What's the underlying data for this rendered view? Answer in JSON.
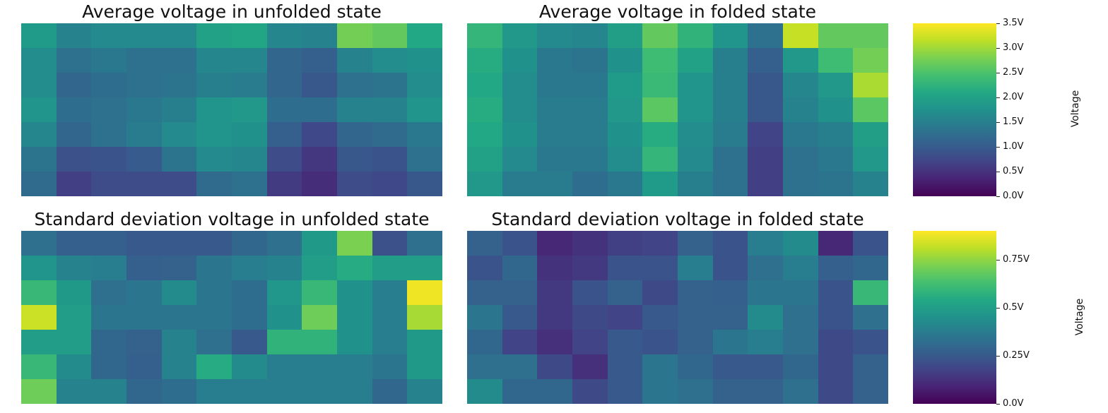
{
  "chart_data": [
    {
      "type": "heatmap",
      "title": "Average voltage in unfolded state",
      "scale": "mean",
      "values": [
        [
          1.9,
          1.55,
          1.65,
          1.65,
          1.65,
          2.0,
          2.05,
          1.6,
          1.55,
          2.75,
          2.65,
          2.1
        ],
        [
          1.7,
          1.3,
          1.4,
          1.3,
          1.3,
          1.6,
          1.6,
          1.15,
          1.05,
          1.55,
          1.7,
          1.75
        ],
        [
          1.7,
          1.15,
          1.25,
          1.3,
          1.35,
          1.5,
          1.45,
          1.15,
          0.95,
          1.3,
          1.35,
          1.7
        ],
        [
          1.8,
          1.25,
          1.3,
          1.4,
          1.5,
          1.8,
          1.85,
          1.25,
          1.25,
          1.55,
          1.55,
          1.8
        ],
        [
          1.6,
          1.15,
          1.3,
          1.45,
          1.65,
          1.8,
          1.75,
          1.05,
          0.75,
          1.15,
          1.2,
          1.4
        ],
        [
          1.35,
          0.85,
          0.9,
          1.0,
          1.35,
          1.65,
          1.6,
          0.8,
          0.55,
          0.95,
          0.9,
          1.3
        ],
        [
          1.2,
          0.65,
          0.8,
          0.8,
          0.8,
          1.2,
          1.3,
          0.6,
          0.45,
          0.8,
          0.75,
          0.95
        ]
      ]
    },
    {
      "type": "heatmap",
      "title": "Average voltage in folded state",
      "scale": "mean",
      "values": [
        [
          2.3,
          1.85,
          1.65,
          1.6,
          1.95,
          2.65,
          2.25,
          1.8,
          1.3,
          3.2,
          2.65,
          2.65
        ],
        [
          2.15,
          1.75,
          1.4,
          1.35,
          1.75,
          2.4,
          2.0,
          1.5,
          1.05,
          1.85,
          2.4,
          2.75
        ],
        [
          2.1,
          1.7,
          1.4,
          1.4,
          1.9,
          2.35,
          1.8,
          1.5,
          0.95,
          1.6,
          1.85,
          3.05
        ],
        [
          2.15,
          1.7,
          1.45,
          1.45,
          1.85,
          2.6,
          1.8,
          1.5,
          0.95,
          1.55,
          1.75,
          2.6
        ],
        [
          2.1,
          1.75,
          1.45,
          1.45,
          1.75,
          2.15,
          1.7,
          1.45,
          0.7,
          1.4,
          1.5,
          1.95
        ],
        [
          2.0,
          1.65,
          1.4,
          1.4,
          1.7,
          2.3,
          1.65,
          1.3,
          0.65,
          1.3,
          1.4,
          1.85
        ],
        [
          1.85,
          1.45,
          1.45,
          1.25,
          1.4,
          1.9,
          1.5,
          1.3,
          0.65,
          1.3,
          1.35,
          1.55
        ]
      ]
    },
    {
      "type": "heatmap",
      "title": "Standard deviation voltage in unfolded state",
      "scale": "std",
      "values": [
        [
          0.33,
          0.27,
          0.27,
          0.25,
          0.25,
          0.25,
          0.3,
          0.33,
          0.48,
          0.72,
          0.22,
          0.33
        ],
        [
          0.46,
          0.4,
          0.38,
          0.27,
          0.28,
          0.35,
          0.38,
          0.4,
          0.5,
          0.55,
          0.5,
          0.5
        ],
        [
          0.6,
          0.48,
          0.33,
          0.35,
          0.43,
          0.35,
          0.32,
          0.47,
          0.6,
          0.45,
          0.38,
          0.88
        ],
        [
          0.83,
          0.5,
          0.35,
          0.35,
          0.35,
          0.35,
          0.32,
          0.45,
          0.7,
          0.45,
          0.38,
          0.78
        ],
        [
          0.5,
          0.5,
          0.3,
          0.28,
          0.4,
          0.33,
          0.25,
          0.58,
          0.58,
          0.45,
          0.38,
          0.48
        ],
        [
          0.6,
          0.43,
          0.3,
          0.27,
          0.4,
          0.55,
          0.43,
          0.38,
          0.38,
          0.38,
          0.35,
          0.48
        ],
        [
          0.7,
          0.4,
          0.4,
          0.3,
          0.32,
          0.38,
          0.38,
          0.38,
          0.38,
          0.38,
          0.3,
          0.4
        ]
      ]
    },
    {
      "type": "heatmap",
      "title": "Standard deviation voltage in folded state",
      "scale": "std",
      "values": [
        [
          0.28,
          0.23,
          0.1,
          0.13,
          0.17,
          0.18,
          0.28,
          0.23,
          0.38,
          0.43,
          0.1,
          0.23
        ],
        [
          0.23,
          0.3,
          0.13,
          0.15,
          0.23,
          0.23,
          0.38,
          0.23,
          0.33,
          0.38,
          0.27,
          0.3
        ],
        [
          0.28,
          0.28,
          0.15,
          0.23,
          0.28,
          0.2,
          0.28,
          0.27,
          0.35,
          0.35,
          0.23,
          0.6
        ],
        [
          0.35,
          0.25,
          0.15,
          0.2,
          0.18,
          0.25,
          0.28,
          0.28,
          0.43,
          0.33,
          0.23,
          0.33
        ],
        [
          0.3,
          0.18,
          0.12,
          0.18,
          0.25,
          0.23,
          0.28,
          0.35,
          0.38,
          0.33,
          0.2,
          0.23
        ],
        [
          0.33,
          0.33,
          0.2,
          0.12,
          0.25,
          0.35,
          0.3,
          0.25,
          0.25,
          0.3,
          0.2,
          0.28
        ],
        [
          0.43,
          0.3,
          0.3,
          0.2,
          0.25,
          0.35,
          0.33,
          0.28,
          0.28,
          0.33,
          0.2,
          0.28
        ]
      ]
    }
  ],
  "colorbars": {
    "mean": {
      "label": "Voltage",
      "range": [
        0.0,
        3.5
      ],
      "ticks": [
        0.0,
        0.5,
        1.0,
        1.5,
        2.0,
        2.5,
        3.0,
        3.5
      ],
      "tick_labels": [
        "0.0V",
        "0.5V",
        "1.0V",
        "1.5V",
        "2.0V",
        "2.5V",
        "3.0V",
        "3.5V"
      ]
    },
    "std": {
      "label": "Voltage",
      "range": [
        0.0,
        0.9
      ],
      "ticks": [
        0.0,
        0.25,
        0.5,
        0.75
      ],
      "tick_labels": [
        "0.0V",
        "0.25V",
        "0.5V",
        "0.75V"
      ]
    }
  },
  "colormap": "viridis"
}
